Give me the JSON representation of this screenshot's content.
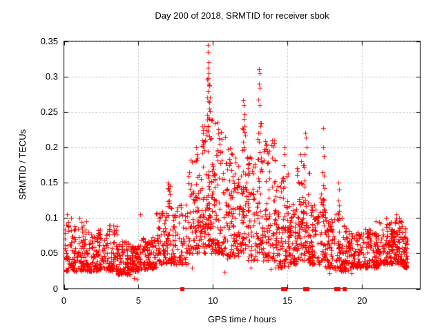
{
  "figure": {
    "background": "#ffffff",
    "border_color": "#000000",
    "text_color": "#000000"
  },
  "chart_data": {
    "type": "scatter",
    "title": "Day 200 of 2018, SRMTID for receiver sbok",
    "xlabel": "GPS time / hours",
    "ylabel": "SRMTID / TECUs",
    "xlim": [
      0,
      23.9
    ],
    "ylim": [
      0,
      0.35
    ],
    "x_ticks": [
      0,
      5,
      10,
      15,
      20
    ],
    "y_ticks": [
      0,
      0.05,
      0.1,
      0.15,
      0.2,
      0.25,
      0.3,
      0.35
    ],
    "grid": true,
    "grid_style": "dashed",
    "grid_color": "#b4b4b4",
    "legend": "none",
    "marker": "plus",
    "marker_color": "#ff0000",
    "zero_marker": "filled-square",
    "seed": 20180200,
    "series": [
      {
        "name": "SRMTID",
        "band_segments_format": "x_start, x_end, count, y_min, y_max, skew_exponent",
        "band_segments": [
          [
            0.05,
            0.7,
            60,
            0.025,
            0.095,
            1.7
          ],
          [
            0.7,
            1.6,
            90,
            0.025,
            0.095,
            1.7
          ],
          [
            1.6,
            2.6,
            100,
            0.025,
            0.085,
            1.7
          ],
          [
            2.6,
            3.6,
            95,
            0.025,
            0.09,
            1.7
          ],
          [
            3.6,
            4.5,
            85,
            0.02,
            0.07,
            1.7
          ],
          [
            4.5,
            5.1,
            80,
            0.025,
            0.06,
            1.5
          ],
          [
            5.1,
            6.2,
            100,
            0.028,
            0.075,
            1.7
          ],
          [
            6.2,
            6.9,
            70,
            0.035,
            0.11,
            1.7
          ],
          [
            6.9,
            7.15,
            30,
            0.04,
            0.15,
            1.5
          ],
          [
            7.15,
            8.3,
            95,
            0.035,
            0.12,
            1.8
          ],
          [
            8.3,
            9.0,
            70,
            0.05,
            0.2,
            1.9
          ],
          [
            9.0,
            9.55,
            60,
            0.05,
            0.23,
            1.9
          ],
          [
            9.55,
            9.85,
            55,
            0.06,
            0.3,
            1.7
          ],
          [
            9.85,
            10.15,
            50,
            0.05,
            0.24,
            1.8
          ],
          [
            10.15,
            10.65,
            60,
            0.05,
            0.235,
            1.8
          ],
          [
            10.65,
            11.25,
            65,
            0.04,
            0.2,
            1.8
          ],
          [
            11.25,
            11.95,
            70,
            0.045,
            0.19,
            1.8
          ],
          [
            11.95,
            12.25,
            40,
            0.05,
            0.23,
            1.6
          ],
          [
            12.25,
            12.95,
            70,
            0.04,
            0.19,
            1.8
          ],
          [
            12.95,
            13.35,
            50,
            0.05,
            0.24,
            1.6
          ],
          [
            13.35,
            14.2,
            85,
            0.04,
            0.21,
            1.9
          ],
          [
            14.2,
            14.6,
            45,
            0.03,
            0.15,
            1.8
          ],
          [
            14.6,
            15.05,
            50,
            0.03,
            0.17,
            1.7
          ],
          [
            15.05,
            15.6,
            60,
            0.035,
            0.12,
            1.7
          ],
          [
            15.6,
            16.1,
            60,
            0.04,
            0.175,
            1.4
          ],
          [
            16.1,
            16.45,
            40,
            0.04,
            0.18,
            1.6
          ],
          [
            16.45,
            17.2,
            75,
            0.035,
            0.12,
            1.8
          ],
          [
            17.2,
            17.55,
            40,
            0.04,
            0.135,
            1.6
          ],
          [
            17.55,
            18.2,
            65,
            0.03,
            0.1,
            1.7
          ],
          [
            18.2,
            18.65,
            45,
            0.025,
            0.11,
            1.8
          ],
          [
            18.65,
            19.1,
            50,
            0.025,
            0.09,
            1.7
          ],
          [
            19.1,
            20.1,
            100,
            0.03,
            0.08,
            1.7
          ],
          [
            20.1,
            21.1,
            105,
            0.03,
            0.085,
            1.7
          ],
          [
            21.1,
            22.1,
            110,
            0.035,
            0.095,
            1.7
          ],
          [
            22.1,
            22.75,
            80,
            0.035,
            0.1,
            1.7
          ],
          [
            22.75,
            23.05,
            45,
            0.03,
            0.09,
            1.6
          ]
        ],
        "peak_points": [
          [
            0.2,
            0.105
          ],
          [
            0.5,
            0.1
          ],
          [
            1.05,
            0.1
          ],
          [
            1.5,
            0.095
          ],
          [
            4.72,
            0.015
          ],
          [
            4.9,
            0.013
          ],
          [
            5.12,
            0.105
          ],
          [
            6.98,
            0.15
          ],
          [
            7.02,
            0.147
          ],
          [
            6.95,
            0.142
          ],
          [
            7.05,
            0.138
          ],
          [
            8.6,
            0.03
          ],
          [
            8.88,
            0.2
          ],
          [
            8.92,
            0.19
          ],
          [
            8.95,
            0.185
          ],
          [
            9.3,
            0.23
          ],
          [
            9.34,
            0.224
          ],
          [
            9.28,
            0.21
          ],
          [
            9.65,
            0.345
          ],
          [
            9.68,
            0.335
          ],
          [
            9.7,
            0.32
          ],
          [
            9.66,
            0.312
          ],
          [
            9.72,
            0.305
          ],
          [
            9.69,
            0.29
          ],
          [
            9.75,
            0.287
          ],
          [
            9.63,
            0.27
          ],
          [
            9.71,
            0.265
          ],
          [
            9.77,
            0.255
          ],
          [
            9.6,
            0.246
          ],
          [
            9.73,
            0.24
          ],
          [
            9.67,
            0.23
          ],
          [
            10.3,
            0.235
          ],
          [
            10.34,
            0.225
          ],
          [
            10.45,
            0.205
          ],
          [
            10.8,
            0.215
          ],
          [
            10.75,
            0.024
          ],
          [
            11.3,
            0.19
          ],
          [
            11.5,
            0.185
          ],
          [
            12.03,
            0.266
          ],
          [
            12.07,
            0.26
          ],
          [
            12.1,
            0.247
          ],
          [
            12.05,
            0.24
          ],
          [
            12.12,
            0.23
          ],
          [
            12.0,
            0.225
          ],
          [
            12.07,
            0.2
          ],
          [
            12.55,
            0.03
          ],
          [
            13.08,
            0.31
          ],
          [
            13.12,
            0.305
          ],
          [
            13.1,
            0.29
          ],
          [
            13.15,
            0.284
          ],
          [
            13.05,
            0.267
          ],
          [
            13.12,
            0.26
          ],
          [
            13.2,
            0.23
          ],
          [
            13.06,
            0.22
          ],
          [
            13.6,
            0.205
          ],
          [
            13.85,
            0.028
          ],
          [
            13.95,
            0.185
          ],
          [
            14.1,
            0.21
          ],
          [
            14.78,
            0.2
          ],
          [
            14.82,
            0.19
          ],
          [
            14.76,
            0.175
          ],
          [
            15.85,
            0.19
          ],
          [
            15.9,
            0.18
          ],
          [
            16.18,
            0.22
          ],
          [
            16.24,
            0.214
          ],
          [
            16.3,
            0.2
          ],
          [
            16.15,
            0.19
          ],
          [
            17.38,
            0.227
          ],
          [
            17.4,
            0.2
          ],
          [
            17.42,
            0.187
          ],
          [
            17.35,
            0.165
          ],
          [
            17.46,
            0.16
          ],
          [
            17.4,
            0.146
          ],
          [
            17.5,
            0.142
          ],
          [
            17.8,
            0.022
          ],
          [
            18.42,
            0.15
          ],
          [
            18.45,
            0.14
          ],
          [
            18.4,
            0.125
          ],
          [
            18.48,
            0.118
          ],
          [
            19.3,
            0.022
          ],
          [
            20.9,
            0.095
          ],
          [
            21.6,
            0.1
          ],
          [
            22.3,
            0.105
          ],
          [
            22.5,
            0.1
          ]
        ],
        "zero_markers_x": [
          7.95,
          14.72,
          14.85,
          16.18,
          16.32,
          18.28,
          18.42,
          18.85
        ]
      }
    ]
  }
}
